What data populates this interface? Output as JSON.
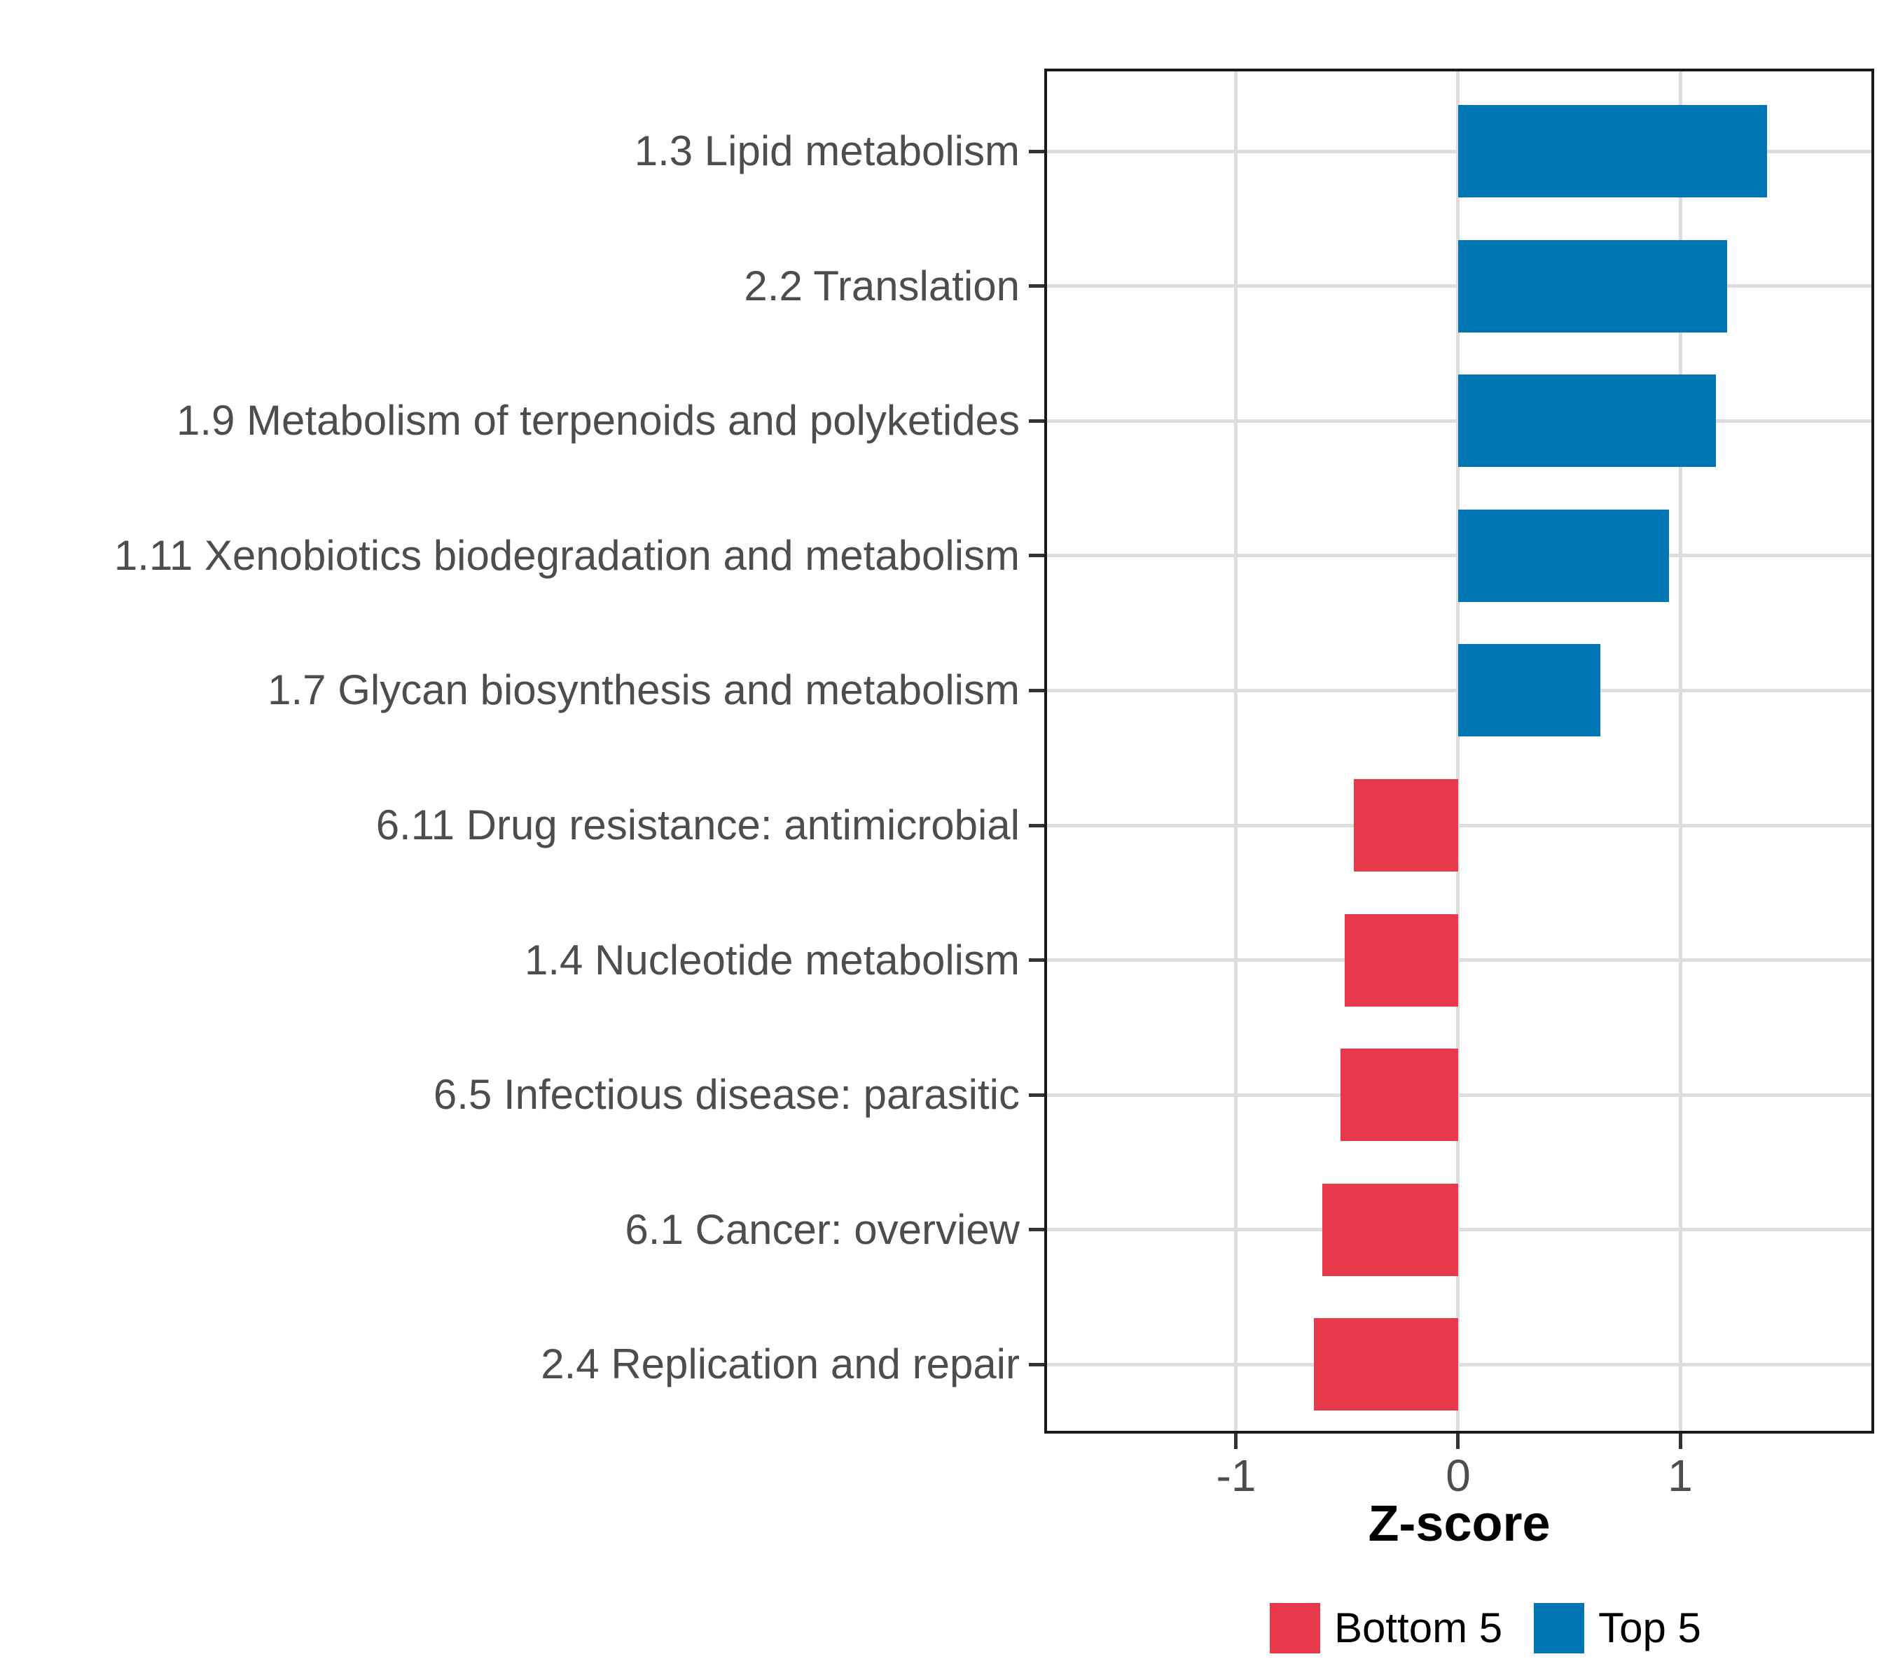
{
  "chart_data": {
    "type": "bar",
    "orientation": "horizontal",
    "title": "",
    "xlabel": "Z-score",
    "ylabel": "",
    "categories": [
      "1.3 Lipid metabolism",
      "2.2 Translation",
      "1.9 Metabolism of terpenoids and polyketides",
      "1.11 Xenobiotics biodegradation and metabolism",
      "1.7 Glycan biosynthesis and metabolism",
      "6.11 Drug resistance: antimicrobial",
      "1.4 Nucleotide metabolism",
      "6.5 Infectious disease: parasitic",
      "6.1 Cancer: overview",
      "2.4 Replication and repair"
    ],
    "values": [
      1.39,
      1.21,
      1.16,
      0.95,
      0.64,
      -0.47,
      -0.51,
      -0.53,
      -0.61,
      -0.65
    ],
    "groups": [
      "Top 5",
      "Top 5",
      "Top 5",
      "Top 5",
      "Top 5",
      "Bottom 5",
      "Bottom 5",
      "Bottom 5",
      "Bottom 5",
      "Bottom 5"
    ],
    "xlim": [
      -1.85,
      1.86
    ],
    "xticks": [
      -1,
      0,
      1
    ],
    "xtick_labels": [
      "-1",
      "0",
      "1"
    ],
    "grid": true,
    "legend_position": "bottom",
    "legend": [
      {
        "label": "Bottom 5",
        "color": "#E8394A"
      },
      {
        "label": "Top 5",
        "color": "#0076B4"
      }
    ],
    "colors": {
      "top5_blue": "#0076B4",
      "bottom5_red": "#E8394A",
      "gridline": "#DDDDDD",
      "panel_border": "#1A1A1A",
      "axis_text": "#4D4D4D",
      "tick_mark": "#333333",
      "axis_title": "#000000"
    }
  }
}
